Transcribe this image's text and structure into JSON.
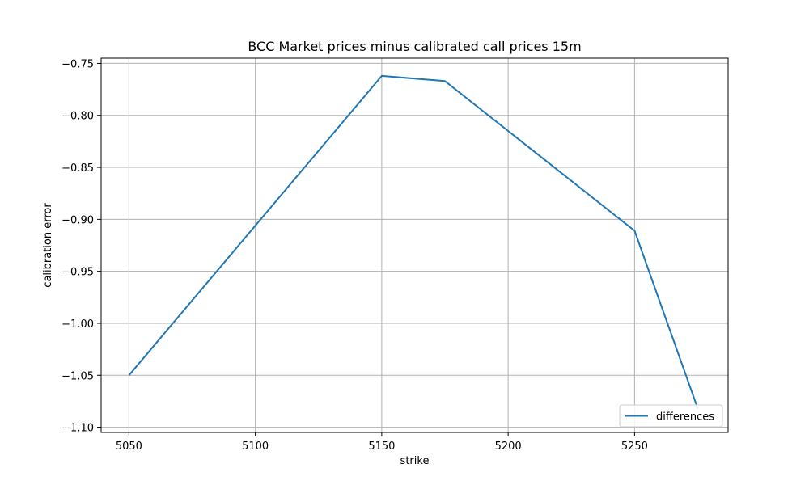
{
  "chart_data": {
    "type": "line",
    "title": "BCC Market prices minus calibrated call prices 15m",
    "xlabel": "strike",
    "ylabel": "calibration error",
    "xlim": [
      5039,
      5287
    ],
    "ylim": [
      -1.105,
      -0.745
    ],
    "xticks": [
      5050,
      5100,
      5150,
      5200,
      5250
    ],
    "xtick_labels": [
      "5050",
      "5100",
      "5150",
      "5200",
      "5250"
    ],
    "yticks": [
      -0.75,
      -0.8,
      -0.85,
      -0.9,
      -0.95,
      -1.0,
      -1.05,
      -1.1
    ],
    "ytick_labels": [
      "−0.75",
      "−0.80",
      "−0.85",
      "−0.90",
      "−0.95",
      "−1.00",
      "−1.05",
      "−1.10"
    ],
    "grid": true,
    "legend_position": "lower-right",
    "series": [
      {
        "name": "differences",
        "color": "#1f77b4",
        "x": [
          5050,
          5150,
          5175,
          5250,
          5275
        ],
        "y": [
          -1.05,
          -0.762,
          -0.767,
          -0.911,
          -1.082
        ]
      }
    ]
  }
}
